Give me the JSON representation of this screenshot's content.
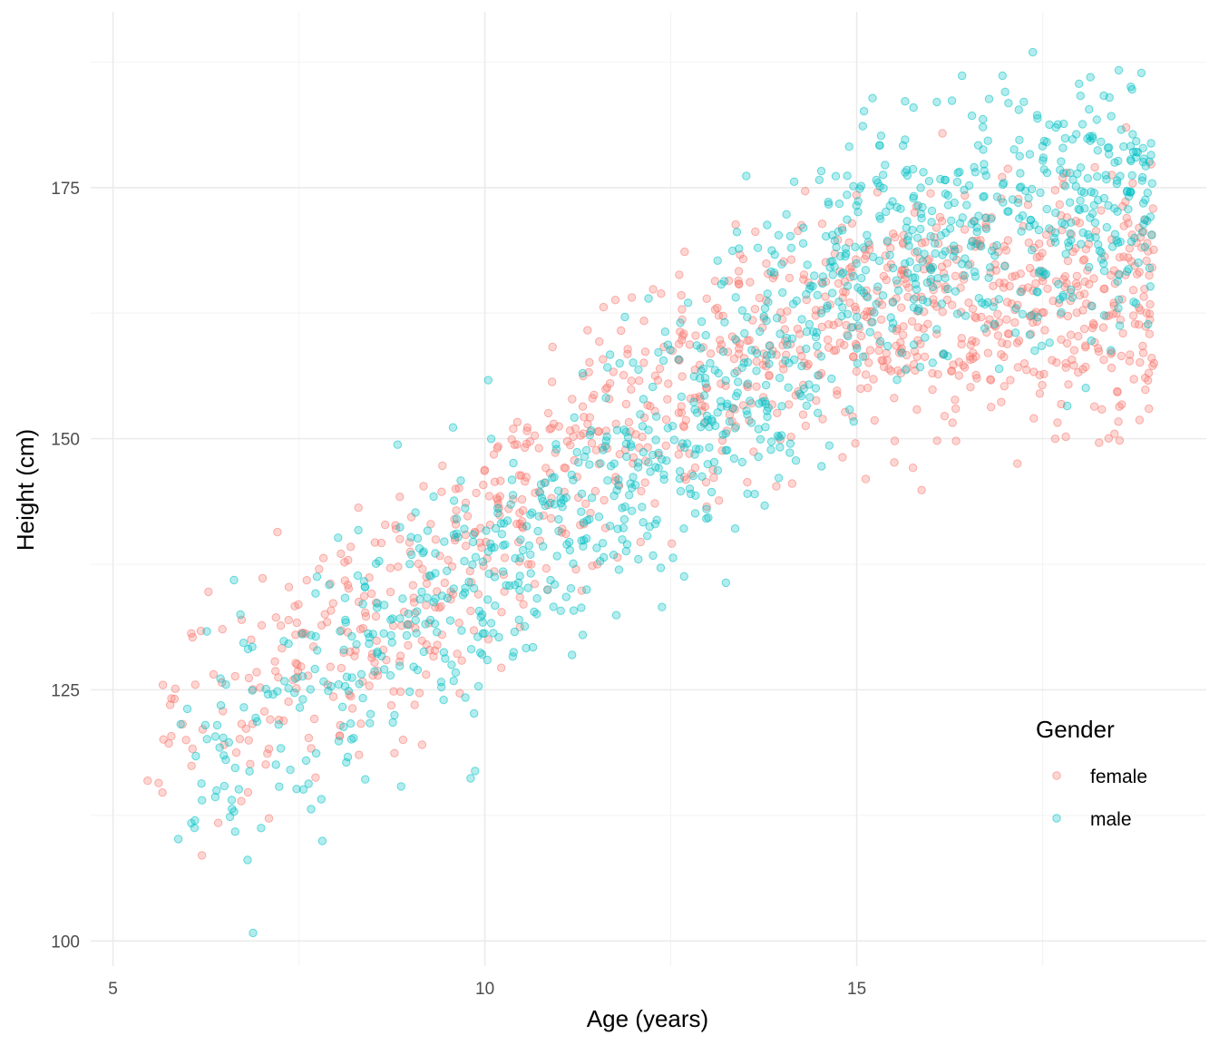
{
  "chart_data": {
    "type": "scatter",
    "title": "",
    "xlabel": "Age (years)",
    "ylabel": "Height (cm)",
    "xlim": [
      4.7,
      19.7
    ],
    "ylim": [
      97.5,
      192.5
    ],
    "x_ticks": [
      5,
      10,
      15
    ],
    "x_tick_labels": [
      "5",
      "10",
      "15"
    ],
    "x_minor_ticks": [
      7.5,
      12.5,
      17.5
    ],
    "y_ticks": [
      100,
      125,
      150,
      175
    ],
    "y_tick_labels": [
      "100",
      "125",
      "150",
      "175"
    ],
    "y_minor_ticks": [
      112.5,
      137.5,
      162.5,
      187.5
    ],
    "grid": true,
    "point_opacity": 0.3,
    "legend": {
      "title": "Gender",
      "position": "inside-bottom-right",
      "entries": [
        "female",
        "male"
      ]
    },
    "series_generation": "approximate point cloud reconstructed from the figure; female roughly 400 points per age band with pubertal plateau near 163 cm, male with later growth spurt reaching about 172 cm",
    "series": [
      {
        "name": "female",
        "color": "#F8766D",
        "n_points": 1080,
        "age_range": [
          5.4,
          19.0
        ],
        "trend": [
          [
            5.5,
            119
          ],
          [
            7,
            126
          ],
          [
            8,
            129
          ],
          [
            9,
            134
          ],
          [
            10,
            141
          ],
          [
            11,
            146
          ],
          [
            12,
            152
          ],
          [
            13,
            156
          ],
          [
            14,
            160
          ],
          [
            15,
            162
          ],
          [
            16,
            163
          ],
          [
            17,
            163.5
          ],
          [
            18,
            163.5
          ],
          [
            19,
            164
          ]
        ],
        "spread_sd": 6.2
      },
      {
        "name": "male",
        "color": "#00BFC4",
        "n_points": 1100,
        "age_range": [
          5.8,
          19.0
        ],
        "trend": [
          [
            5.8,
            116
          ],
          [
            7,
            121
          ],
          [
            8,
            126
          ],
          [
            9,
            131
          ],
          [
            10,
            136
          ],
          [
            11,
            141
          ],
          [
            12,
            146
          ],
          [
            13,
            152
          ],
          [
            14,
            160
          ],
          [
            15,
            166
          ],
          [
            16,
            170
          ],
          [
            17,
            172
          ],
          [
            18,
            173
          ],
          [
            19,
            173.5
          ]
        ],
        "spread_sd": 6.5
      }
    ]
  }
}
